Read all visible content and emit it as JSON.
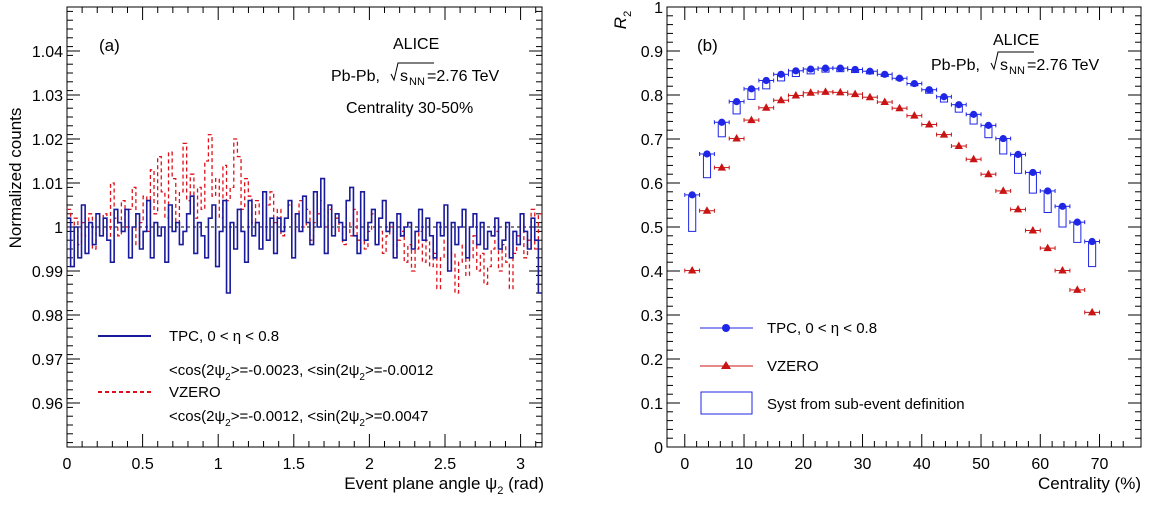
{
  "chart_data": [
    {
      "type": "line",
      "panel_label": "(a)",
      "xlabel_main": "Event plane angle ψ",
      "xlabel_sub": "2",
      "xlabel_unit": " (rad)",
      "ylabel": "Normalized counts",
      "xlim": [
        0,
        3.1416
      ],
      "ylim": [
        0.95,
        1.05
      ],
      "grid": false,
      "xticks": [
        "0",
        "0.5",
        "1",
        "1.5",
        "2",
        "2.5",
        "3"
      ],
      "xtick_values": [
        0,
        0.5,
        1,
        1.5,
        2,
        2.5,
        3
      ],
      "yticks": [
        "0.96",
        "0.97",
        "0.98",
        "0.99",
        "1",
        "1.01",
        "1.02",
        "1.03",
        "1.04"
      ],
      "ytick_values": [
        0.96,
        0.97,
        0.98,
        0.99,
        1.0,
        1.01,
        1.02,
        1.03,
        1.04
      ],
      "annotations": {
        "experiment": "ALICE",
        "system_prefix": "Pb-Pb, ",
        "energy_s": "s",
        "energy_sub": "NN",
        "energy_value": "=2.76 TeV",
        "centrality": "Centrality 30-50%"
      },
      "legend_position": "bottom-left",
      "series": [
        {
          "name": "TPC, 0 < η < 0.8",
          "stat_cos": "<cos(2ψ",
          "stat_sin": ">=-0.0023, <sin(2ψ",
          "stat_end": ">=-0.0012",
          "stat_sub": "2",
          "color": "#1a1a9c",
          "style": "solid",
          "values": [
            1.002,
            0.991,
            1.0,
            0.993,
            1.005,
            0.994,
            1.001,
            0.996,
            1.003,
            0.998,
            1.002,
            0.997,
            0.992,
            1.004,
            1.001,
            0.999,
            1.004,
            0.993,
            1.0,
            1.003,
            0.995,
            0.999,
            1.006,
            0.993,
            1.001,
            0.998,
            1.0,
            0.992,
            1.005,
            0.999,
            1.001,
            0.996,
            0.999,
            1.003,
            1.007,
            0.994,
            1.001,
            0.998,
            0.993,
            1.002,
            1.005,
            0.991,
            0.999,
            1.006,
            0.985,
            1.001,
            0.995,
            1.004,
            0.999,
            0.992,
            1.006,
            0.998,
            1.001,
            0.995,
            1.008,
            0.997,
            1.002,
            0.994,
            1.002,
            0.999,
            1.002,
            1.006,
            0.993,
            1.003,
            0.999,
            1.007,
            1.001,
            0.996,
            1.008,
            1.0,
            1.011,
            0.994,
            1.005,
            0.998,
            1.003,
            1.001,
            0.997,
            1.006,
            1.009,
            0.998,
            0.994,
            1.008,
            0.997,
            1.001,
            1.004,
            0.996,
            1.002,
            1.006,
            0.999,
            1.001,
            0.993,
            1.003,
            0.998,
            1.0,
            1.001,
            0.995,
            0.999,
            1.004,
            0.997,
            1.002,
            0.998,
            0.993,
            1.001,
            0.998,
            1.005,
            0.99,
            1.001,
            0.996,
            1.0,
            1.004,
            0.993,
            1.0,
            1.003,
            0.996,
            1.001,
            0.995,
            0.999,
            0.998,
            1.002,
            0.995,
            0.997,
            1.001,
            0.993,
            0.999,
            0.996,
            1.003,
            0.999,
            0.995,
            1.002,
            0.997,
            0.985
          ]
        },
        {
          "name": "VZERO",
          "stat_cos": "<cos(2ψ",
          "stat_sin": ">=-0.0012, <sin(2ψ",
          "stat_end": ">=0.0047",
          "stat_sub": "2",
          "color": "#e0101a",
          "style": "dashed",
          "values": [
            1.004,
            0.999,
            1.002,
            0.996,
            1.001,
            0.998,
            1.003,
            0.995,
            1.0,
            0.998,
            1.003,
            0.997,
            1.01,
            1.002,
            0.998,
            1.006,
            1.0,
            1.004,
            1.009,
            0.996,
            1.001,
            1.007,
            0.999,
            1.013,
            1.003,
            1.016,
            1.008,
            1.002,
            1.017,
            1.011,
            1.001,
            1.008,
            1.019,
            1.006,
            1.012,
            1.002,
            1.009,
            1.004,
            1.015,
            1.021,
            1.007,
            1.011,
            1.002,
            1.014,
            1.006,
            1.009,
            1.02,
            1.016,
            1.004,
            1.011,
            1.007,
            1.001,
            1.006,
            1.003,
            0.999,
            1.005,
            1.008,
            1.001,
            1.004,
            0.998,
            1.002,
            1.005,
            0.999,
            1.003,
            1.006,
            1.0,
            1.004,
            0.997,
            1.001,
            1.003,
            1.006,
            1.0,
            1.004,
            0.998,
            1.002,
            0.999,
            0.996,
            1.001,
            0.998,
            1.004,
            0.997,
            1.0,
            0.995,
            0.999,
            1.003,
            0.996,
            0.999,
            0.994,
            0.998,
            1.0,
            0.993,
            0.997,
            0.999,
            0.992,
            0.996,
            0.99,
            0.995,
            0.999,
            0.992,
            0.997,
            0.991,
            0.994,
            0.986,
            0.993,
            0.997,
            0.99,
            0.994,
            0.985,
            0.992,
            0.996,
            0.989,
            0.993,
            0.998,
            0.99,
            0.994,
            0.987,
            0.991,
            0.995,
            0.999,
            0.99,
            0.996,
            0.992,
            0.986,
            0.994,
            0.998,
            1.001,
            0.993,
            0.997,
            1.004,
            0.995,
            1.003
          ]
        }
      ]
    },
    {
      "type": "scatter",
      "panel_label": "(b)",
      "xlabel": "Centrality (%)",
      "ylabel": "R",
      "ylabel_sub": "2",
      "xlim": [
        -3,
        77
      ],
      "ylim": [
        0,
        1
      ],
      "grid": false,
      "xticks": [
        "0",
        "10",
        "20",
        "30",
        "40",
        "50",
        "60",
        "70"
      ],
      "xtick_values": [
        0,
        10,
        20,
        30,
        40,
        50,
        60,
        70
      ],
      "yticks": [
        "0",
        "0.1",
        "0.2",
        "0.3",
        "0.4",
        "0.5",
        "0.6",
        "0.7",
        "0.8",
        "0.9",
        "1"
      ],
      "ytick_values": [
        0,
        0.1,
        0.2,
        0.3,
        0.4,
        0.5,
        0.6,
        0.7,
        0.8,
        0.9,
        1.0
      ],
      "annotations": {
        "experiment": "ALICE",
        "system_prefix": "Pb-Pb, ",
        "energy_s": "s",
        "energy_sub": "NN",
        "energy_value": "=2.76 TeV"
      },
      "legend_position": "bottom-left",
      "x": [
        1.25,
        3.75,
        6.25,
        8.75,
        11.25,
        13.75,
        16.25,
        18.75,
        21.25,
        23.75,
        26.25,
        28.75,
        31.25,
        33.75,
        36.25,
        38.75,
        41.25,
        43.75,
        46.25,
        48.75,
        51.25,
        53.75,
        56.25,
        58.75,
        61.25,
        63.75,
        66.25,
        68.75
      ],
      "x_error": 1.25,
      "series": [
        {
          "name": "TPC, 0 < η < 0.8",
          "marker": "circle",
          "color": "#1f26e6",
          "values": [
            0.573,
            0.666,
            0.738,
            0.785,
            0.814,
            0.833,
            0.847,
            0.855,
            0.859,
            0.861,
            0.861,
            0.858,
            0.854,
            0.847,
            0.838,
            0.826,
            0.812,
            0.796,
            0.778,
            0.756,
            0.731,
            0.701,
            0.665,
            0.624,
            0.582,
            0.547,
            0.511,
            0.467
          ],
          "syst_low": [
            0.49,
            0.612,
            0.705,
            0.757,
            0.79,
            0.814,
            0.832,
            0.842,
            0.848,
            0.852,
            0.853,
            0.851,
            0.848,
            0.842,
            0.834,
            0.821,
            0.804,
            0.784,
            0.761,
            0.734,
            0.703,
            0.666,
            0.622,
            0.577,
            0.533,
            0.5,
            0.465,
            0.41
          ]
        },
        {
          "name": "VZERO",
          "marker": "triangle",
          "color": "#c81414",
          "values": [
            0.401,
            0.537,
            0.635,
            0.701,
            0.743,
            0.771,
            0.788,
            0.799,
            0.805,
            0.807,
            0.806,
            0.802,
            0.795,
            0.784,
            0.77,
            0.753,
            0.733,
            0.71,
            0.684,
            0.654,
            0.62,
            0.582,
            0.54,
            0.492,
            0.452,
            0.401,
            0.357,
            0.306
          ]
        }
      ],
      "syst_legend": "Syst from sub-event definition"
    }
  ]
}
